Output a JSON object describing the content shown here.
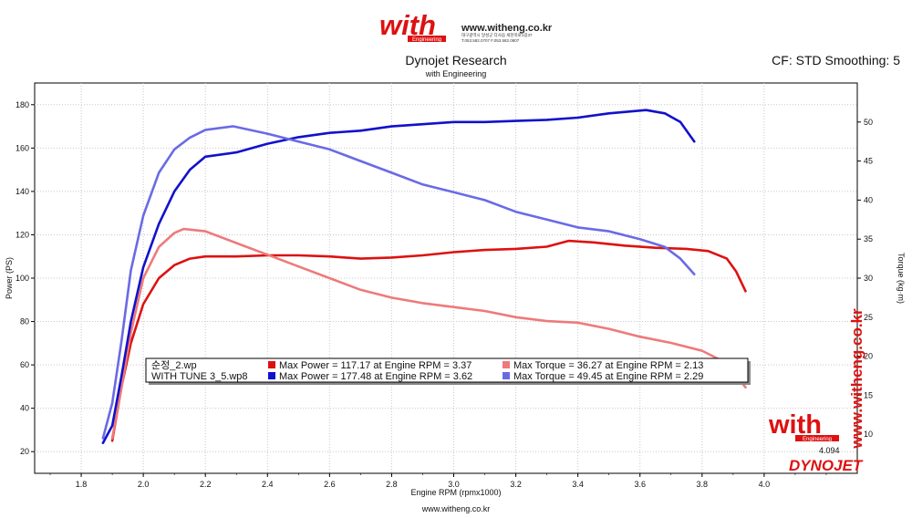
{
  "header": {
    "brand": "with",
    "brand_sub": "Engineering",
    "url": "www.witheng.co.kr",
    "contact_line1": "대구광역시 달성군 다사읍 세천북로1길37",
    "contact_line2": "T.053.582.0707 F.053.582.0807"
  },
  "title": "Dynojet Research",
  "subtitle": "with Engineering",
  "cf_info": "CF: STD Smoothing: 5",
  "footer_url": "www.witheng.co.kr",
  "side_watermark": "www.witheng.co.kr",
  "corner": {
    "brand": "with",
    "brand_sub": "Engineering",
    "version": "4.094",
    "dynojet_logo": "DYNOJET"
  },
  "legend": {
    "rows": [
      {
        "run": "순정_2.wp",
        "power_text": "Max Power = 117.17 at Engine RPM = 3.37",
        "torque_text": "Max Torque = 36.27 at Engine RPM = 2.13",
        "power_color": "#dd1111",
        "torque_color": "#ee7a7a"
      },
      {
        "run": "WITH TUNE 3_5.wp8",
        "power_text": "Max Power = 177.48 at Engine RPM = 3.62",
        "torque_text": "Max Torque = 49.45 at Engine RPM = 2.29",
        "power_color": "#1111cc",
        "torque_color": "#6a6ae6"
      }
    ]
  },
  "chart_data": {
    "type": "line",
    "xlabel": "Engine RPM (rpmx1000)",
    "ylabel_left": "Power (PS)",
    "ylabel_right": "Torque (kg·m)",
    "xlim": [
      1.65,
      4.3
    ],
    "ylim_left": [
      10,
      190
    ],
    "ylim_right": [
      5,
      55
    ],
    "x_ticks": [
      1.8,
      2.0,
      2.2,
      2.4,
      2.6,
      2.8,
      3.0,
      3.2,
      3.4,
      3.6,
      3.8,
      4.0
    ],
    "x_tick_labels": [
      "1.8",
      "2.0",
      "2.2",
      "2.4",
      "2.6",
      "2.8",
      "3.0",
      "3.2",
      "3.4",
      "3.6",
      "3.8",
      "4.0"
    ],
    "y_left_ticks": [
      20,
      40,
      60,
      80,
      100,
      120,
      140,
      160,
      180
    ],
    "y_left_tick_labels": [
      "20",
      "40",
      "60",
      "80",
      "100",
      "120",
      "140",
      "160",
      "180"
    ],
    "y_right_ticks": [
      10,
      15,
      20,
      25,
      30,
      35,
      40,
      45,
      50
    ],
    "y_right_tick_labels": [
      "10",
      "15",
      "20",
      "25",
      "30",
      "35",
      "40",
      "45",
      "50"
    ],
    "grid": true,
    "series": [
      {
        "name": "순정_2.wp",
        "quantity": "Power",
        "axis": "left",
        "color": "#dd1111",
        "points": [
          [
            1.9,
            25
          ],
          [
            1.93,
            50
          ],
          [
            1.96,
            70
          ],
          [
            2.0,
            88
          ],
          [
            2.05,
            100
          ],
          [
            2.1,
            106
          ],
          [
            2.15,
            109
          ],
          [
            2.2,
            110
          ],
          [
            2.3,
            110
          ],
          [
            2.4,
            110.5
          ],
          [
            2.5,
            110.5
          ],
          [
            2.6,
            110
          ],
          [
            2.7,
            109
          ],
          [
            2.8,
            109.5
          ],
          [
            2.9,
            110.5
          ],
          [
            3.0,
            112
          ],
          [
            3.1,
            113
          ],
          [
            3.2,
            113.5
          ],
          [
            3.3,
            114.5
          ],
          [
            3.37,
            117.2
          ],
          [
            3.45,
            116.5
          ],
          [
            3.55,
            115
          ],
          [
            3.65,
            114
          ],
          [
            3.75,
            113.5
          ],
          [
            3.82,
            112.5
          ],
          [
            3.88,
            109
          ],
          [
            3.91,
            103
          ],
          [
            3.94,
            94
          ]
        ]
      },
      {
        "name": "순정_2.wp",
        "quantity": "Torque",
        "axis": "right",
        "color": "#ee7a7a",
        "points": [
          [
            1.9,
            9.5
          ],
          [
            1.93,
            16
          ],
          [
            1.96,
            23
          ],
          [
            2.0,
            30
          ],
          [
            2.05,
            34
          ],
          [
            2.1,
            35.8
          ],
          [
            2.13,
            36.3
          ],
          [
            2.2,
            36
          ],
          [
            2.3,
            34.5
          ],
          [
            2.4,
            33
          ],
          [
            2.5,
            31.5
          ],
          [
            2.6,
            30
          ],
          [
            2.7,
            28.5
          ],
          [
            2.8,
            27.5
          ],
          [
            2.9,
            26.8
          ],
          [
            3.0,
            26.3
          ],
          [
            3.1,
            25.8
          ],
          [
            3.2,
            25
          ],
          [
            3.3,
            24.5
          ],
          [
            3.4,
            24.3
          ],
          [
            3.5,
            23.5
          ],
          [
            3.6,
            22.5
          ],
          [
            3.7,
            21.7
          ],
          [
            3.8,
            20.7
          ],
          [
            3.86,
            19.5
          ],
          [
            3.91,
            17.5
          ],
          [
            3.94,
            16
          ]
        ]
      },
      {
        "name": "WITH TUNE 3_5.wp8",
        "quantity": "Power",
        "axis": "left",
        "color": "#1111cc",
        "points": [
          [
            1.87,
            24
          ],
          [
            1.9,
            32
          ],
          [
            1.93,
            55
          ],
          [
            1.96,
            80
          ],
          [
            2.0,
            105
          ],
          [
            2.05,
            125
          ],
          [
            2.1,
            140
          ],
          [
            2.15,
            150
          ],
          [
            2.2,
            156
          ],
          [
            2.3,
            158
          ],
          [
            2.4,
            162
          ],
          [
            2.5,
            165
          ],
          [
            2.6,
            167
          ],
          [
            2.7,
            168
          ],
          [
            2.8,
            170
          ],
          [
            2.9,
            171
          ],
          [
            3.0,
            172
          ],
          [
            3.1,
            172
          ],
          [
            3.2,
            172.5
          ],
          [
            3.3,
            173
          ],
          [
            3.4,
            174
          ],
          [
            3.5,
            176
          ],
          [
            3.62,
            177.5
          ],
          [
            3.68,
            176
          ],
          [
            3.73,
            172
          ],
          [
            3.775,
            163
          ]
        ]
      },
      {
        "name": "WITH TUNE 3_5.wp8",
        "quantity": "Torque",
        "axis": "right",
        "color": "#6a6ae6",
        "points": [
          [
            1.87,
            9.5
          ],
          [
            1.9,
            14
          ],
          [
            1.93,
            22
          ],
          [
            1.96,
            31
          ],
          [
            2.0,
            38
          ],
          [
            2.05,
            43.5
          ],
          [
            2.1,
            46.5
          ],
          [
            2.15,
            48
          ],
          [
            2.2,
            49
          ],
          [
            2.29,
            49.45
          ],
          [
            2.4,
            48.5
          ],
          [
            2.5,
            47.5
          ],
          [
            2.6,
            46.5
          ],
          [
            2.7,
            45
          ],
          [
            2.8,
            43.5
          ],
          [
            2.9,
            42
          ],
          [
            3.0,
            41
          ],
          [
            3.1,
            40
          ],
          [
            3.2,
            38.5
          ],
          [
            3.3,
            37.5
          ],
          [
            3.4,
            36.5
          ],
          [
            3.5,
            36
          ],
          [
            3.6,
            35
          ],
          [
            3.68,
            34
          ],
          [
            3.73,
            32.5
          ],
          [
            3.775,
            30.5
          ]
        ]
      }
    ]
  }
}
